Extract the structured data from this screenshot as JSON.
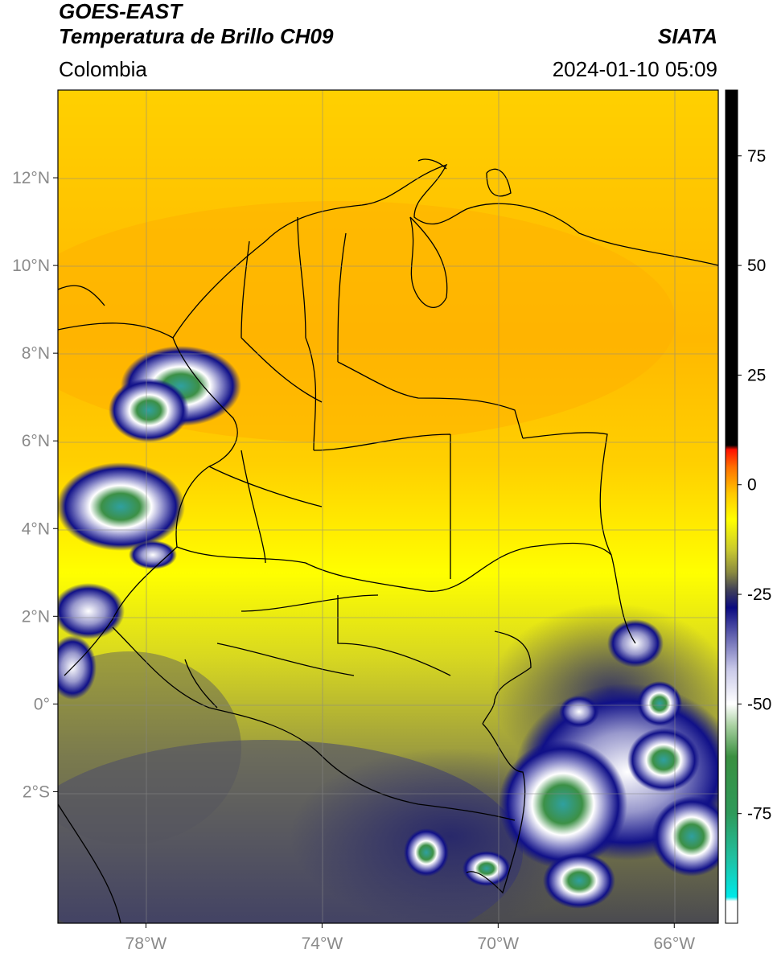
{
  "header": {
    "line1": "GOES-EAST",
    "line2": "Temperatura de Brillo CH09",
    "region": "Colombia",
    "brand": "SIATA",
    "timestamp": "2024-01-10 05:09"
  },
  "map": {
    "lon_range": [
      -80,
      -65
    ],
    "lat_range": [
      -5,
      14
    ],
    "lon_ticks": [
      {
        "value": -78,
        "label": "78°W"
      },
      {
        "value": -74,
        "label": "74°W"
      },
      {
        "value": -70,
        "label": "70°W"
      },
      {
        "value": -66,
        "label": "66°W"
      }
    ],
    "lat_ticks": [
      {
        "value": 12,
        "label": "12°N"
      },
      {
        "value": 10,
        "label": "10°N"
      },
      {
        "value": 8,
        "label": "8°N"
      },
      {
        "value": 6,
        "label": "6°N"
      },
      {
        "value": 4,
        "label": "4°N"
      },
      {
        "value": 2,
        "label": "2°N"
      },
      {
        "value": 0,
        "label": "0°"
      },
      {
        "value": -2,
        "label": "2°S"
      }
    ],
    "grid": true
  },
  "colorbar": {
    "range": [
      -100,
      90
    ],
    "ticks": [
      {
        "value": 75,
        "label": "75"
      },
      {
        "value": 50,
        "label": "50"
      },
      {
        "value": 25,
        "label": "25"
      },
      {
        "value": 0,
        "label": "0"
      },
      {
        "value": -25,
        "label": "-25"
      },
      {
        "value": -50,
        "label": "-50"
      },
      {
        "value": -75,
        "label": "-75"
      }
    ],
    "stops": [
      {
        "value": -100,
        "color": "#ffffff"
      },
      {
        "value": -95,
        "color": "#ffffff"
      },
      {
        "value": -94,
        "color": "#00e8e8"
      },
      {
        "value": -85,
        "color": "#20c0a0"
      },
      {
        "value": -75,
        "color": "#2e9a5a"
      },
      {
        "value": -62,
        "color": "#3a9040"
      },
      {
        "value": -55,
        "color": "#a8d0a0"
      },
      {
        "value": -50,
        "color": "#ffffff"
      },
      {
        "value": -42,
        "color": "#c8c8e8"
      },
      {
        "value": -35,
        "color": "#6a6ab4"
      },
      {
        "value": -28,
        "color": "#0a0a80"
      },
      {
        "value": -24,
        "color": "#404058"
      },
      {
        "value": -20,
        "color": "#8a8a40"
      },
      {
        "value": -15,
        "color": "#c8c830"
      },
      {
        "value": -8,
        "color": "#ffff00"
      },
      {
        "value": -2,
        "color": "#ffc800"
      },
      {
        "value": 4,
        "color": "#ff7000"
      },
      {
        "value": 8,
        "color": "#ff1000"
      },
      {
        "value": 9,
        "color": "#000000"
      },
      {
        "value": 90,
        "color": "#000000"
      }
    ]
  }
}
